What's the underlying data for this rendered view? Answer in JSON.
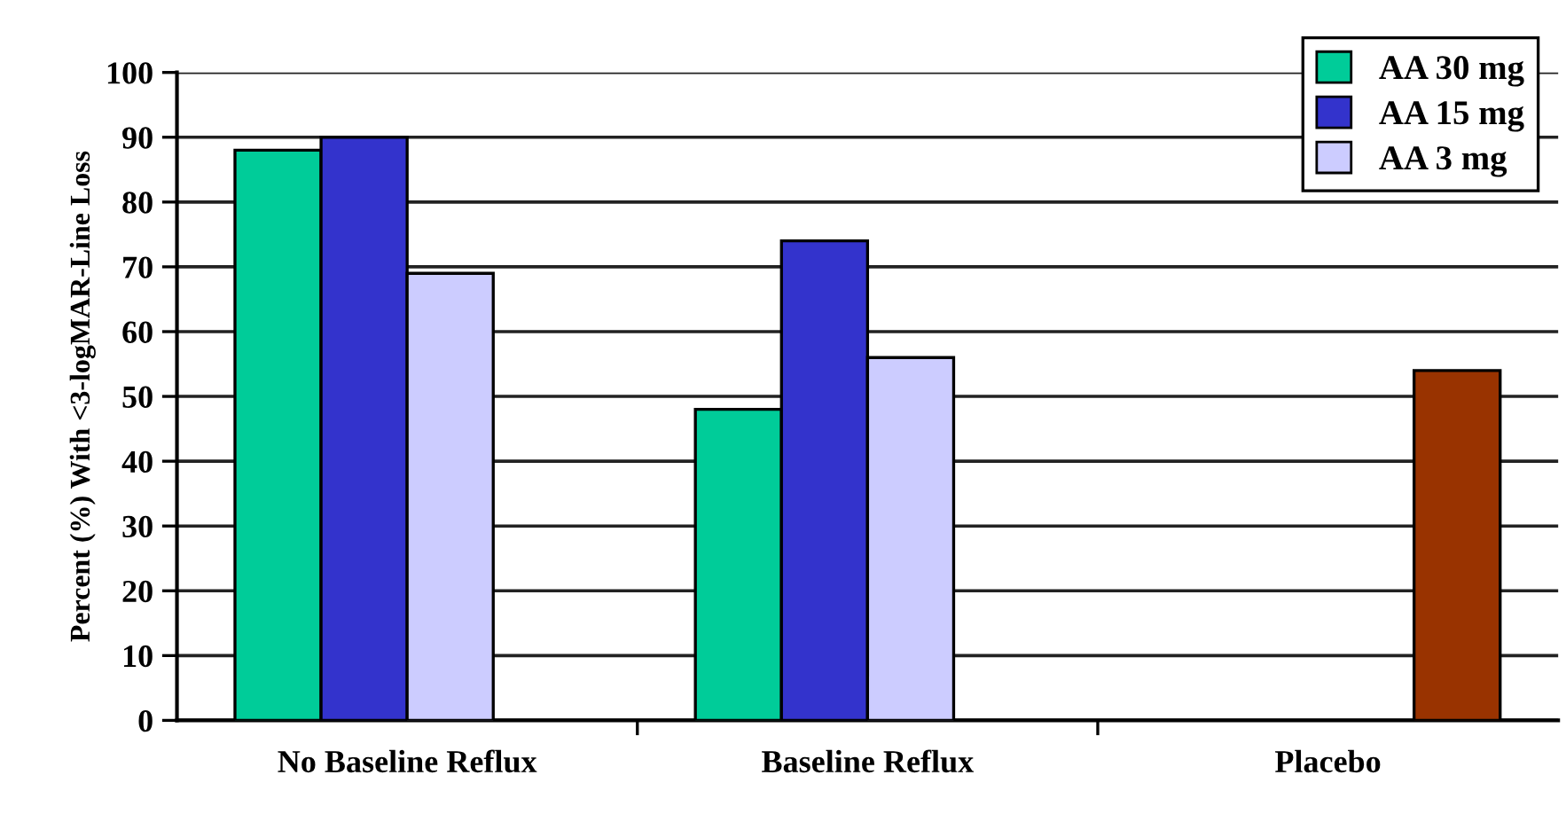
{
  "chart_data": {
    "type": "bar",
    "ylabel": "Percent (%) With <3-logMAR-Line Loss",
    "categories": [
      "No Baseline Reflux",
      "Baseline Reflux",
      "Placebo"
    ],
    "series": [
      {
        "name": "AA 30 mg",
        "color": "#00cc99",
        "values": [
          88,
          48,
          null
        ]
      },
      {
        "name": "AA 15 mg",
        "color": "#3333cc",
        "values": [
          90,
          74,
          null
        ]
      },
      {
        "name": "AA 3 mg",
        "color": "#ccccff",
        "values": [
          69,
          56,
          null
        ]
      },
      {
        "color": "#993300",
        "values": [
          null,
          null,
          54
        ]
      }
    ],
    "ylim": [
      0,
      100
    ],
    "yticks": [
      0,
      10,
      20,
      30,
      40,
      50,
      60,
      70,
      80,
      90,
      100
    ],
    "grid": "y",
    "legend": "top right"
  }
}
